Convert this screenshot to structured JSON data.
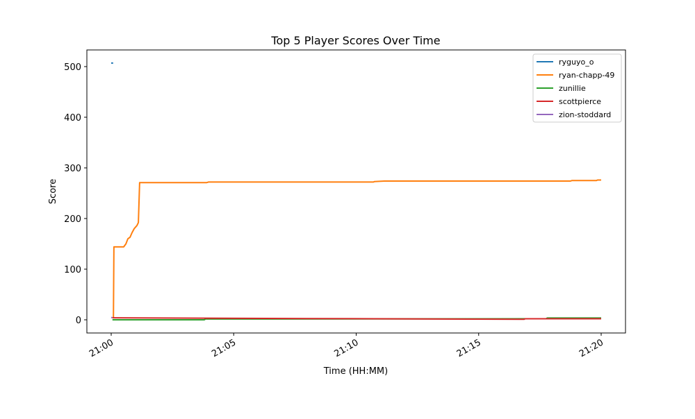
{
  "chart_data": {
    "type": "line",
    "title": "Top 5 Player Scores Over Time",
    "xlabel": "Time (HH:MM)",
    "ylabel": "Score",
    "x_unit": "minutes after 21:00",
    "xlim": [
      -1,
      21
    ],
    "ylim": [
      -26,
      531
    ],
    "x_ticks": [
      {
        "value": 0,
        "label": "21:00"
      },
      {
        "value": 5,
        "label": "21:05"
      },
      {
        "value": 10,
        "label": "21:10"
      },
      {
        "value": 15,
        "label": "21:15"
      },
      {
        "value": 20,
        "label": "21:20"
      }
    ],
    "y_ticks": [
      0,
      100,
      200,
      300,
      400,
      500
    ],
    "grid": false,
    "legend_position": "top-right",
    "series": [
      {
        "name": "ryguyo_o",
        "color": "#1f77b4",
        "points": [
          [
            0.0,
            507
          ],
          [
            0.08,
            507
          ]
        ]
      },
      {
        "name": "ryan-chapp-49",
        "color": "#ff7f0e",
        "points": [
          [
            0.09,
            3
          ],
          [
            0.11,
            144
          ],
          [
            0.51,
            144
          ],
          [
            0.6,
            150
          ],
          [
            0.68,
            160
          ],
          [
            0.77,
            163
          ],
          [
            0.85,
            172
          ],
          [
            0.94,
            180
          ],
          [
            1.05,
            186
          ],
          [
            1.11,
            192
          ],
          [
            1.16,
            271
          ],
          [
            3.9,
            271
          ],
          [
            3.97,
            272
          ],
          [
            10.7,
            272
          ],
          [
            10.75,
            273
          ],
          [
            11.15,
            274
          ],
          [
            18.75,
            274
          ],
          [
            18.8,
            275
          ],
          [
            19.8,
            275
          ],
          [
            19.85,
            276
          ],
          [
            20.0,
            276
          ]
        ]
      },
      {
        "name": "zunillie",
        "color": "#2ca02c",
        "points": [
          [
            0.05,
            0
          ],
          [
            3.8,
            0
          ],
          [
            3.85,
            1.5
          ],
          [
            17.75,
            2
          ],
          [
            17.8,
            3.5
          ],
          [
            20.0,
            3.5
          ]
        ]
      },
      {
        "name": "scottpierce",
        "color": "#d62728",
        "points": [
          [
            0.05,
            4
          ],
          [
            8,
            2.5
          ],
          [
            16.85,
            1
          ],
          [
            16.9,
            2
          ],
          [
            20.0,
            2
          ]
        ]
      },
      {
        "name": "zion-stoddard",
        "color": "#9467bd",
        "points": [
          [
            0.0,
            5
          ],
          [
            0.05,
            4
          ]
        ]
      }
    ]
  }
}
